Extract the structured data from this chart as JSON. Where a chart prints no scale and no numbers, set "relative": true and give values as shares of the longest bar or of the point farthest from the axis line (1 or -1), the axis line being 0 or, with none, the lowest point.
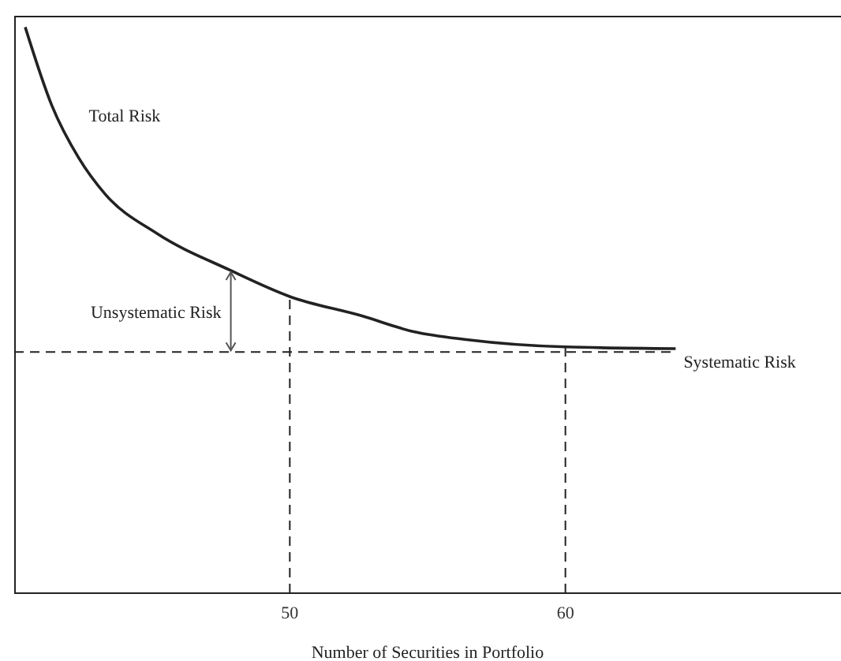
{
  "chart_data": {
    "type": "line",
    "relative": true,
    "xlabel": "Number of Securities in Portfolio",
    "xlim": [
      40,
      70
    ],
    "xticks": [
      50,
      60
    ],
    "series": [
      {
        "color": "#222222",
        "x": [
          40.4,
          41.37,
          42.34,
          43.3,
          45.19,
          47.81,
          50,
          52.6,
          54.5,
          56.4,
          60,
          64
        ],
        "values": [
          1,
          0.861,
          0.769,
          0.705,
          0.635,
          0.571,
          0.524,
          0.49,
          0.462,
          0.448,
          0.435,
          0.432
        ]
      }
    ],
    "ref_lines": [
      {
        "axis": "y",
        "value": 0.426,
        "label": "Systematic Risk",
        "line_style": "dashed"
      },
      {
        "axis": "x",
        "value": 50,
        "line_style": "dashed"
      },
      {
        "axis": "x",
        "value": 60,
        "line_style": "dashed"
      }
    ],
    "annotations": [
      "Total Risk",
      "Unsystematic Risk"
    ],
    "grid": false,
    "legend": false,
    "marker": "none",
    "line_style": "solid"
  }
}
